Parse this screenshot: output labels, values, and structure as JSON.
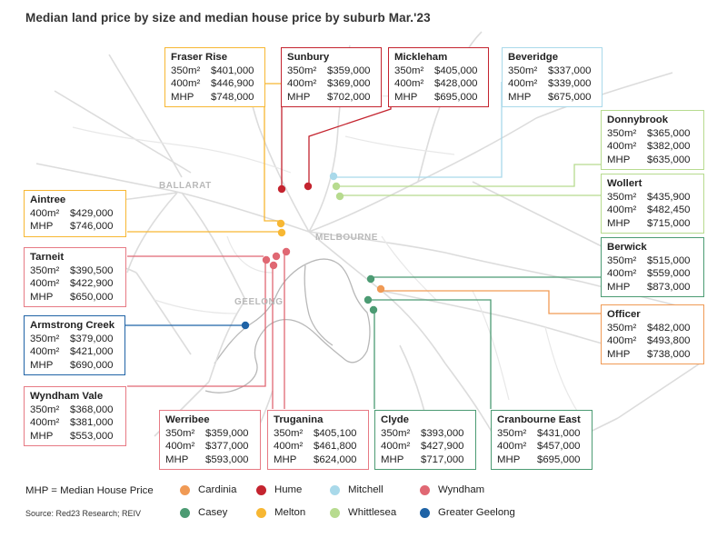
{
  "title": "Median land price by size and median house price by suburb Mar.'23",
  "map_labels": {
    "ballarat": "BALLARAT",
    "melbourne": "MELBOURNE",
    "geelong": "GEELONG"
  },
  "suburbs": {
    "fraser_rise": {
      "name": "Fraser Rise",
      "region": "Melton",
      "rows": [
        [
          "350m²",
          "$401,000"
        ],
        [
          "400m²",
          "$446,900"
        ],
        [
          "MHP",
          "$748,000"
        ]
      ]
    },
    "sunbury": {
      "name": "Sunbury",
      "region": "Hume",
      "rows": [
        [
          "350m²",
          "$359,000"
        ],
        [
          "400m²",
          "$369,000"
        ],
        [
          "MHP",
          "$702,000"
        ]
      ]
    },
    "mickleham": {
      "name": "Mickleham",
      "region": "Hume",
      "rows": [
        [
          "350m²",
          "$405,000"
        ],
        [
          "400m²",
          "$428,000"
        ],
        [
          "MHP",
          "$695,000"
        ]
      ]
    },
    "beveridge": {
      "name": "Beveridge",
      "region": "Mitchell",
      "rows": [
        [
          "350m²",
          "$337,000"
        ],
        [
          "400m²",
          "$339,000"
        ],
        [
          "MHP",
          "$675,000"
        ]
      ]
    },
    "donnybrook": {
      "name": "Donnybrook",
      "region": "Whittlesea",
      "rows": [
        [
          "350m²",
          "$365,000"
        ],
        [
          "400m²",
          "$382,000"
        ],
        [
          "MHP",
          "$635,000"
        ]
      ]
    },
    "wollert": {
      "name": "Wollert",
      "region": "Whittlesea",
      "rows": [
        [
          "350m²",
          "$435,900"
        ],
        [
          "400m²",
          "$482,450"
        ],
        [
          "MHP",
          "$715,000"
        ]
      ]
    },
    "aintree": {
      "name": "Aintree",
      "region": "Melton",
      "rows": [
        [
          "400m²",
          "$429,000"
        ],
        [
          "MHP",
          "$746,000"
        ]
      ]
    },
    "tarneit": {
      "name": "Tarneit",
      "region": "Wyndham",
      "rows": [
        [
          "350m²",
          "$390,500"
        ],
        [
          "400m²",
          "$422,900"
        ],
        [
          "MHP",
          "$650,000"
        ]
      ]
    },
    "berwick": {
      "name": "Berwick",
      "region": "Casey",
      "rows": [
        [
          "350m²",
          "$515,000"
        ],
        [
          "400m²",
          "$559,000"
        ],
        [
          "MHP",
          "$873,000"
        ]
      ]
    },
    "armstrong_creek": {
      "name": "Armstrong Creek",
      "region": "Greater Geelong",
      "rows": [
        [
          "350m²",
          "$379,000"
        ],
        [
          "400m²",
          "$421,000"
        ],
        [
          "MHP",
          "$690,000"
        ]
      ]
    },
    "officer": {
      "name": "Officer",
      "region": "Cardinia",
      "rows": [
        [
          "350m²",
          "$482,000"
        ],
        [
          "400m²",
          "$493,800"
        ],
        [
          "MHP",
          "$738,000"
        ]
      ]
    },
    "wyndham_vale": {
      "name": "Wyndham Vale",
      "region": "Wyndham",
      "rows": [
        [
          "350m²",
          "$368,000"
        ],
        [
          "400m²",
          "$381,000"
        ],
        [
          "MHP",
          "$553,000"
        ]
      ]
    },
    "werribee": {
      "name": "Werribee",
      "region": "Wyndham",
      "rows": [
        [
          "350m²",
          "$359,000"
        ],
        [
          "400m²",
          "$377,000"
        ],
        [
          "MHP",
          "$593,000"
        ]
      ]
    },
    "truganina": {
      "name": "Truganina",
      "region": "Wyndham",
      "rows": [
        [
          "350m²",
          "$405,100"
        ],
        [
          "400m²",
          "$461,800"
        ],
        [
          "MHP",
          "$624,000"
        ]
      ]
    },
    "clyde": {
      "name": "Clyde",
      "region": "Casey",
      "rows": [
        [
          "350m²",
          "$393,000"
        ],
        [
          "400m²",
          "$427,900"
        ],
        [
          "MHP",
          "$717,000"
        ]
      ]
    },
    "cranbourne_east": {
      "name": "Cranbourne East",
      "region": "Casey",
      "rows": [
        [
          "350m²",
          "$431,000"
        ],
        [
          "400m²",
          "$457,000"
        ],
        [
          "MHP",
          "$695,000"
        ]
      ]
    }
  },
  "legend": {
    "note": "MHP = Median House Price",
    "source": "Source: Red23 Research; REIV",
    "items": [
      {
        "label": "Cardinia",
        "color": "#f09a55"
      },
      {
        "label": "Hume",
        "color": "#c4242f"
      },
      {
        "label": "Mitchell",
        "color": "#a9d9ea"
      },
      {
        "label": "Wyndham",
        "color": "#e06873"
      },
      {
        "label": "Casey",
        "color": "#4c9b73"
      },
      {
        "label": "Melton",
        "color": "#f7b733"
      },
      {
        "label": "Whittlesea",
        "color": "#b7db8f"
      },
      {
        "label": "Greater Geelong",
        "color": "#1f63a6"
      }
    ]
  }
}
